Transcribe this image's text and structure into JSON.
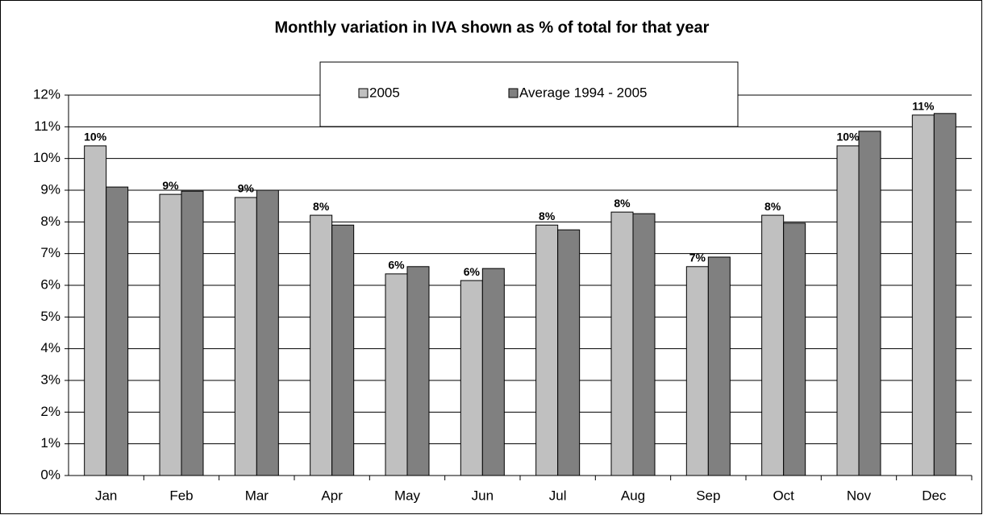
{
  "chart_data": {
    "type": "bar",
    "title": "Monthly variation in IVA shown as % of total for that year",
    "categories": [
      "Jan",
      "Feb",
      "Mar",
      "Apr",
      "May",
      "Jun",
      "Jul",
      "Aug",
      "Sep",
      "Oct",
      "Nov",
      "Dec"
    ],
    "series": [
      {
        "name": "2005",
        "color": "#c0c0c0",
        "values": [
          10.4,
          8.87,
          8.77,
          8.21,
          6.36,
          6.15,
          7.9,
          8.31,
          6.59,
          8.21,
          10.4,
          11.37
        ],
        "value_labels": [
          "10%",
          "9%",
          "9%",
          "8%",
          "6%",
          "6%",
          "8%",
          "8%",
          "7%",
          "8%",
          "10%",
          "11%"
        ]
      },
      {
        "name": "Average 1994 - 2005",
        "color": "#808080",
        "values": [
          9.1,
          8.97,
          9.0,
          7.9,
          6.59,
          6.53,
          7.75,
          8.26,
          6.89,
          7.96,
          10.86,
          11.42
        ]
      }
    ],
    "ylim": [
      0,
      12
    ],
    "yticks": [
      {
        "value": 0,
        "label": "0%"
      },
      {
        "value": 1,
        "label": "1%"
      },
      {
        "value": 2,
        "label": "2%"
      },
      {
        "value": 3,
        "label": "3%"
      },
      {
        "value": 4,
        "label": "4%"
      },
      {
        "value": 5,
        "label": "5%"
      },
      {
        "value": 6,
        "label": "6%"
      },
      {
        "value": 7,
        "label": "7%"
      },
      {
        "value": 8,
        "label": "8%"
      },
      {
        "value": 9,
        "label": "9%"
      },
      {
        "value": 10,
        "label": "10%"
      },
      {
        "value": 11,
        "label": "11%"
      },
      {
        "value": 12,
        "label": "12%"
      }
    ],
    "grid": true,
    "legend": "top"
  }
}
